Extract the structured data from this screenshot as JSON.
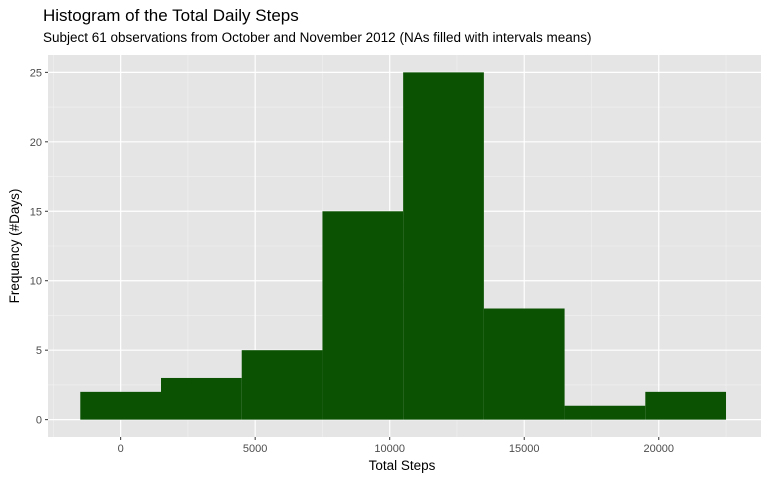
{
  "chart_data": {
    "type": "bar",
    "title": "Histogram of the Total Daily Steps",
    "subtitle": "Subject 61 observations from October and November 2012 (NAs filled with intervals means)",
    "xlabel": "Total Steps",
    "ylabel": "Frequency (#Days)",
    "xlim": [
      -2700,
      23800
    ],
    "ylim": [
      -1.25,
      26.25
    ],
    "bin_width": 3000,
    "bins": [
      {
        "x0": -1500,
        "x1": 1500,
        "count": 2
      },
      {
        "x0": 1500,
        "x1": 4500,
        "count": 3
      },
      {
        "x0": 4500,
        "x1": 7500,
        "count": 5
      },
      {
        "x0": 7500,
        "x1": 10500,
        "count": 15
      },
      {
        "x0": 10500,
        "x1": 13500,
        "count": 25
      },
      {
        "x0": 13500,
        "x1": 16500,
        "count": 8
      },
      {
        "x0": 16500,
        "x1": 19500,
        "count": 1
      },
      {
        "x0": 19500,
        "x1": 22500,
        "count": 2
      }
    ],
    "x_ticks": [
      0,
      5000,
      10000,
      15000,
      20000
    ],
    "x_tick_labels": [
      "0",
      "5000",
      "10000",
      "15000",
      "20000"
    ],
    "y_ticks": [
      0,
      5,
      10,
      15,
      20,
      25
    ],
    "y_tick_labels": [
      "0",
      "5",
      "10",
      "15",
      "20",
      "25"
    ],
    "grid": true,
    "legend": "none",
    "colors": {
      "bar_fill": "#0b5302",
      "panel_background": "#e5e5e5",
      "grid_major": "#ffffff",
      "grid_minor": "#f2f2f2"
    }
  }
}
